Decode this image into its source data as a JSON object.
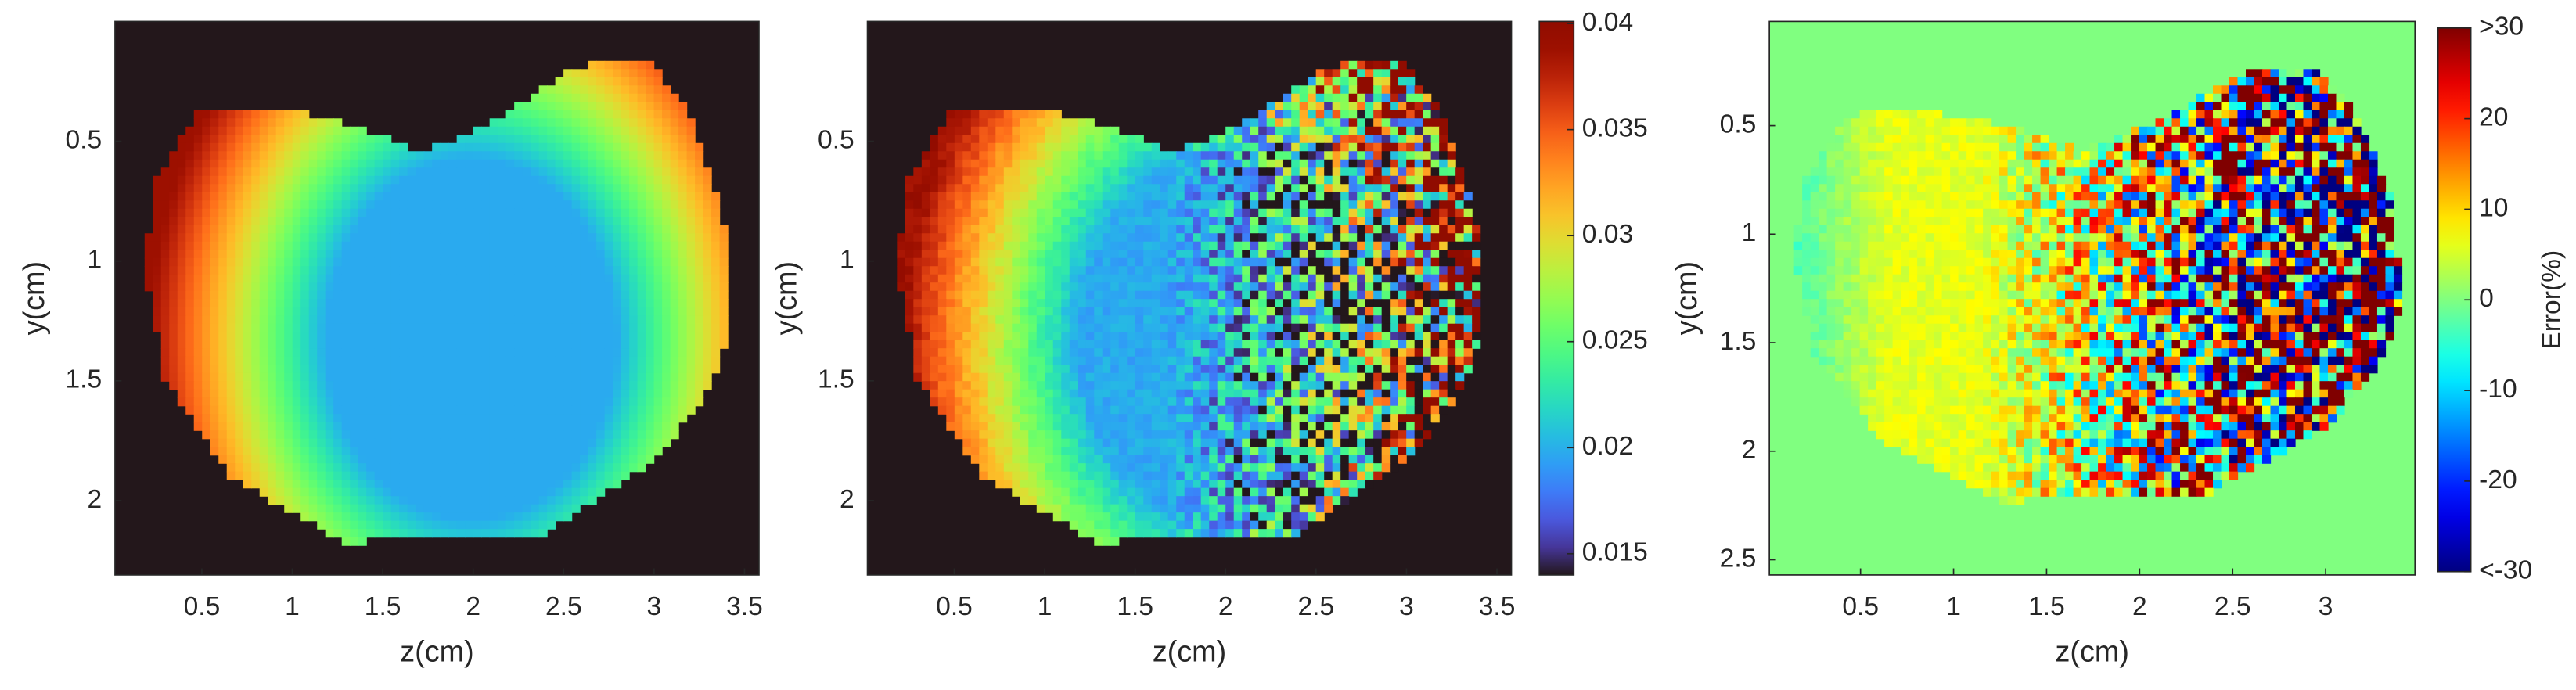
{
  "chart_data": [
    {
      "type": "heatmap",
      "xlabel": "z(cm)",
      "ylabel": "y(cm)",
      "xlim": [
        0.02,
        3.58
      ],
      "ylim": [
        0,
        2.31
      ],
      "yreverse": true,
      "xticks": [
        0.5,
        1,
        1.5,
        2,
        2.5,
        3,
        3.5
      ],
      "yticks": [
        0.5,
        1,
        1.5,
        2
      ],
      "colormap": "turbo"
    },
    {
      "type": "heatmap",
      "xlabel": "z(cm)",
      "ylabel": "y(cm)",
      "xlim": [
        0.02,
        3.58
      ],
      "ylim": [
        0,
        2.31
      ],
      "yreverse": true,
      "xticks": [
        0.5,
        1,
        1.5,
        2,
        2.5,
        3,
        3.5
      ],
      "yticks": [
        0.5,
        1,
        1.5,
        2
      ],
      "colormap": "turbo",
      "colorbar": {
        "lim": [
          0.014,
          0.0401
        ],
        "ticks": [
          0.015,
          0.02,
          0.025,
          0.03,
          0.035,
          0.04
        ]
      }
    },
    {
      "type": "heatmap",
      "xlabel": "z(cm)",
      "ylabel": "y(cm)",
      "xlim": [
        0.01,
        3.48
      ],
      "ylim": [
        0.02,
        2.57
      ],
      "yreverse": true,
      "xticks": [
        0.5,
        1,
        1.5,
        2,
        2.5,
        3
      ],
      "yticks": [
        0.5,
        1,
        1.5,
        2,
        2.5
      ],
      "colormap": "jet",
      "colorbar": {
        "label": "Error(%)",
        "lim": [
          -30,
          30
        ],
        "ticks": [
          {
            "value": -30,
            "label": "<-30"
          },
          -20,
          -10,
          0,
          10,
          20,
          {
            "value": 30,
            "label": ">30"
          }
        ]
      }
    }
  ]
}
